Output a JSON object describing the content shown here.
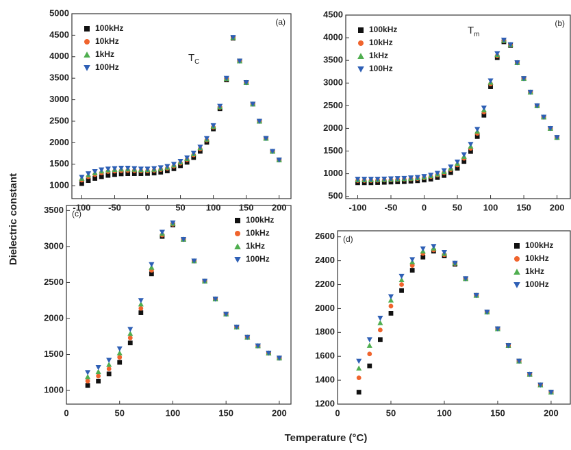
{
  "figure": {
    "xlabel": "Temperature (°C)",
    "ylabel": "Dielectric constant"
  },
  "chart_data": [
    {
      "type": "scatter",
      "panel_label": "(a)",
      "legend": "upper left",
      "annotations": [
        {
          "text": "T",
          "sub": "C"
        }
      ],
      "x": [
        -100,
        -90,
        -80,
        -70,
        -60,
        -50,
        -40,
        -30,
        -20,
        -10,
        0,
        10,
        20,
        30,
        40,
        50,
        60,
        70,
        80,
        90,
        100,
        110,
        120,
        130,
        140,
        150,
        160,
        170,
        180,
        190,
        200
      ],
      "xlim": [
        -115,
        218
      ],
      "ylim": [
        700,
        5000
      ],
      "xticks": [
        -100,
        -50,
        0,
        50,
        100,
        150,
        200
      ],
      "yticks": [
        1000,
        1500,
        2000,
        2500,
        3000,
        3500,
        4000,
        4500,
        5000
      ],
      "series": [
        {
          "name": "100kHz",
          "color": "#111111",
          "marker": "square",
          "values": [
            1050,
            1120,
            1170,
            1210,
            1240,
            1260,
            1275,
            1280,
            1280,
            1280,
            1285,
            1295,
            1315,
            1345,
            1395,
            1465,
            1545,
            1655,
            1800,
            2010,
            2320,
            2790,
            3460,
            4430,
            3900,
            3400,
            2900,
            2500,
            2100,
            1800,
            1600
          ]
        },
        {
          "name": "10kHz",
          "color": "#f0642d",
          "marker": "circle",
          "values": [
            1130,
            1210,
            1260,
            1300,
            1330,
            1340,
            1350,
            1355,
            1350,
            1345,
            1345,
            1355,
            1375,
            1405,
            1455,
            1525,
            1605,
            1715,
            1855,
            2060,
            2360,
            2820,
            3480,
            4440,
            3900,
            3400,
            2900,
            2500,
            2100,
            1800,
            1600
          ]
        },
        {
          "name": "1kHz",
          "color": "#4fae4f",
          "marker": "triangle-up",
          "values": [
            1170,
            1250,
            1300,
            1340,
            1365,
            1375,
            1385,
            1388,
            1380,
            1372,
            1372,
            1380,
            1400,
            1430,
            1480,
            1550,
            1630,
            1740,
            1880,
            2080,
            2380,
            2835,
            3490,
            4445,
            3900,
            3400,
            2900,
            2500,
            2100,
            1800,
            1600
          ]
        },
        {
          "name": "100Hz",
          "color": "#2e5fb5",
          "marker": "triangle-down",
          "values": [
            1200,
            1280,
            1330,
            1370,
            1390,
            1400,
            1410,
            1410,
            1400,
            1390,
            1390,
            1400,
            1420,
            1450,
            1500,
            1570,
            1650,
            1760,
            1900,
            2100,
            2400,
            2850,
            3500,
            4450,
            3900,
            3400,
            2900,
            2500,
            2100,
            1800,
            1600
          ]
        }
      ]
    },
    {
      "type": "scatter",
      "panel_label": "(b)",
      "legend": "upper left",
      "annotations": [
        {
          "text": "T",
          "sub": "m"
        }
      ],
      "x": [
        -100,
        -90,
        -80,
        -70,
        -60,
        -50,
        -40,
        -30,
        -20,
        -10,
        0,
        10,
        20,
        30,
        40,
        50,
        60,
        70,
        80,
        90,
        100,
        110,
        120,
        130,
        140,
        150,
        160,
        170,
        180,
        190,
        200
      ],
      "xlim": [
        -118,
        220
      ],
      "ylim": [
        450,
        4500
      ],
      "xticks": [
        -100,
        -50,
        0,
        50,
        100,
        150,
        200
      ],
      "yticks": [
        500,
        1000,
        1500,
        2000,
        2500,
        3000,
        3500,
        4000,
        4500
      ],
      "series": [
        {
          "name": "100kHz",
          "color": "#111111",
          "marker": "square",
          "values": [
            800,
            800,
            800,
            805,
            810,
            815,
            820,
            825,
            835,
            845,
            860,
            880,
            915,
            960,
            1025,
            1120,
            1270,
            1490,
            1820,
            2290,
            2920,
            3560,
            3910,
            3830,
            3450,
            3100,
            2800,
            2500,
            2250,
            2000,
            1800
          ]
        },
        {
          "name": "10kHz",
          "color": "#f0642d",
          "marker": "circle",
          "values": [
            850,
            850,
            850,
            855,
            860,
            865,
            870,
            875,
            885,
            895,
            910,
            935,
            970,
            1020,
            1090,
            1190,
            1340,
            1560,
            1890,
            2360,
            2980,
            3600,
            3930,
            3840,
            3450,
            3100,
            2800,
            2500,
            2250,
            2000,
            1800
          ]
        },
        {
          "name": "1kHz",
          "color": "#4fae4f",
          "marker": "triangle-up",
          "values": [
            865,
            865,
            865,
            868,
            872,
            878,
            882,
            888,
            898,
            908,
            925,
            952,
            990,
            1045,
            1120,
            1225,
            1380,
            1605,
            1935,
            2405,
            3015,
            3625,
            3940,
            3845,
            3450,
            3100,
            2800,
            2500,
            2250,
            2000,
            1800
          ]
        },
        {
          "name": "100Hz",
          "color": "#2e5fb5",
          "marker": "triangle-down",
          "values": [
            880,
            880,
            880,
            880,
            885,
            890,
            895,
            900,
            910,
            920,
            940,
            970,
            1010,
            1070,
            1150,
            1260,
            1420,
            1650,
            1980,
            2450,
            3050,
            3650,
            3950,
            3850,
            3450,
            3100,
            2800,
            2500,
            2250,
            2000,
            1800
          ]
        }
      ]
    },
    {
      "type": "scatter",
      "panel_label": "(c)",
      "legend": "upper right",
      "x": [
        20,
        30,
        40,
        50,
        60,
        70,
        80,
        90,
        100,
        110,
        120,
        130,
        140,
        150,
        160,
        170,
        180,
        190,
        200
      ],
      "xlim": [
        0,
        211
      ],
      "ylim": [
        810,
        3570
      ],
      "xticks": [
        0,
        50,
        100,
        150,
        200
      ],
      "yticks": [
        1000,
        1500,
        2000,
        2500,
        3000,
        3500
      ],
      "series": [
        {
          "name": "100kHz",
          "color": "#111111",
          "marker": "square",
          "values": [
            1070,
            1130,
            1230,
            1390,
            1660,
            2080,
            2620,
            3140,
            3300,
            3100,
            2800,
            2520,
            2270,
            2060,
            1880,
            1740,
            1620,
            1520,
            1450
          ]
        },
        {
          "name": "10kHz",
          "color": "#f0642d",
          "marker": "circle",
          "values": [
            1130,
            1200,
            1300,
            1460,
            1730,
            2140,
            2670,
            3160,
            3310,
            3100,
            2800,
            2520,
            2270,
            2060,
            1880,
            1740,
            1620,
            1520,
            1450
          ]
        },
        {
          "name": "1kHz",
          "color": "#4fae4f",
          "marker": "triangle-up",
          "values": [
            1190,
            1260,
            1360,
            1520,
            1790,
            2200,
            2710,
            3180,
            3320,
            3100,
            2800,
            2520,
            2270,
            2060,
            1880,
            1740,
            1620,
            1520,
            1450
          ]
        },
        {
          "name": "100Hz",
          "color": "#2e5fb5",
          "marker": "triangle-down",
          "values": [
            1250,
            1320,
            1420,
            1580,
            1850,
            2250,
            2750,
            3200,
            3330,
            3100,
            2800,
            2520,
            2270,
            2060,
            1880,
            1740,
            1620,
            1520,
            1450
          ]
        }
      ]
    },
    {
      "type": "scatter",
      "panel_label": "(d)",
      "legend": "upper right",
      "x": [
        20,
        30,
        40,
        50,
        60,
        70,
        80,
        90,
        100,
        110,
        120,
        130,
        140,
        150,
        160,
        170,
        180,
        190,
        200
      ],
      "xlim": [
        0,
        218
      ],
      "ylim": [
        1200,
        2650
      ],
      "xticks": [
        0,
        50,
        100,
        150,
        200
      ],
      "yticks": [
        1200,
        1400,
        1600,
        1800,
        2000,
        2200,
        2400,
        2600
      ],
      "series": [
        {
          "name": "100kHz",
          "color": "#111111",
          "marker": "square",
          "values": [
            1300,
            1520,
            1740,
            1960,
            2150,
            2320,
            2430,
            2480,
            2440,
            2370,
            2250,
            2110,
            1970,
            1830,
            1690,
            1560,
            1450,
            1360,
            1300
          ]
        },
        {
          "name": "10kHz",
          "color": "#f0642d",
          "marker": "circle",
          "values": [
            1420,
            1620,
            1820,
            2020,
            2200,
            2360,
            2460,
            2490,
            2450,
            2375,
            2250,
            2110,
            1970,
            1830,
            1690,
            1560,
            1450,
            1360,
            1300
          ]
        },
        {
          "name": "1kHz",
          "color": "#4fae4f",
          "marker": "triangle-up",
          "values": [
            1500,
            1690,
            1880,
            2070,
            2240,
            2390,
            2480,
            2505,
            2460,
            2380,
            2250,
            2110,
            1970,
            1830,
            1690,
            1560,
            1450,
            1360,
            1300
          ]
        },
        {
          "name": "100Hz",
          "color": "#2e5fb5",
          "marker": "triangle-down",
          "values": [
            1560,
            1740,
            1920,
            2100,
            2270,
            2410,
            2500,
            2520,
            2470,
            2380,
            2250,
            2110,
            1970,
            1830,
            1690,
            1560,
            1450,
            1360,
            1300
          ]
        }
      ]
    }
  ]
}
